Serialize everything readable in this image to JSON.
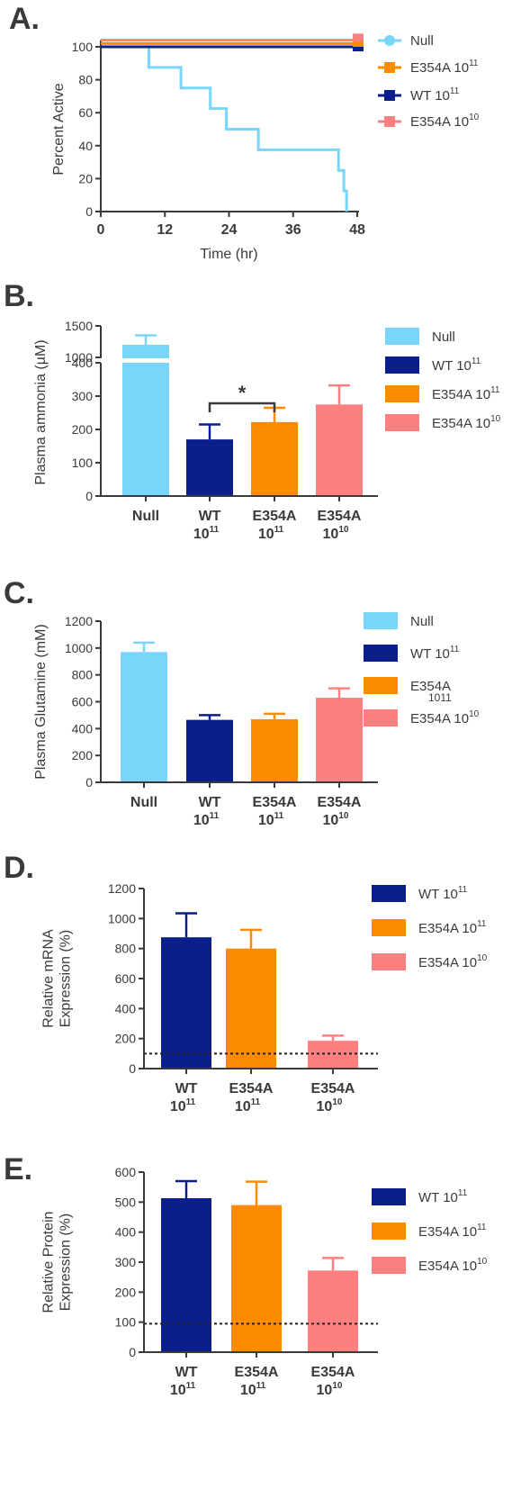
{
  "colors": {
    "null": "#79d5fa",
    "wt": "#0a1e8c",
    "e354a11": "#fb8c00",
    "e354a10": "#fd8080",
    "axis": "#3a3a3a"
  },
  "chart_data": [
    {
      "id": "A",
      "type": "line",
      "panel_label": "A.",
      "xlabel": "Time (hr)",
      "ylabel": "Percent Active",
      "xlim": [
        0,
        48
      ],
      "ylim": [
        0,
        100
      ],
      "xticks": [
        "0",
        "12",
        "24",
        "36",
        "48"
      ],
      "yticks": [
        "0",
        "20",
        "40",
        "60",
        "80",
        "100"
      ],
      "legend_position": "right",
      "series": [
        {
          "name": "Null",
          "key": "null",
          "steps": [
            [
              0,
              100
            ],
            [
              9,
              100
            ],
            [
              9,
              87.5
            ],
            [
              15,
              87.5
            ],
            [
              15,
              75
            ],
            [
              20.5,
              75
            ],
            [
              20.5,
              62.5
            ],
            [
              23.5,
              62.5
            ],
            [
              23.5,
              50
            ],
            [
              29.5,
              50
            ],
            [
              29.5,
              37.5
            ],
            [
              44.5,
              37.5
            ],
            [
              44.5,
              25
            ],
            [
              45.5,
              25
            ],
            [
              45.5,
              12.5
            ],
            [
              46,
              12.5
            ],
            [
              46,
              0
            ]
          ]
        },
        {
          "name": "E354A 10",
          "sup": "11",
          "key": "e354a11",
          "steps": [
            [
              0,
              102
            ],
            [
              48,
              102
            ]
          ]
        },
        {
          "name": "WT 10",
          "sup": "11",
          "key": "wt",
          "steps": [
            [
              0,
              100
            ],
            [
              48,
              100
            ]
          ]
        },
        {
          "name": "E354A 10",
          "sup": "10",
          "key": "e354a10",
          "steps": [
            [
              0,
              104
            ],
            [
              48,
              104
            ]
          ]
        }
      ]
    },
    {
      "id": "B",
      "type": "bar",
      "panel_label": "B.",
      "ylabel": "Plasma ammonia (µM)",
      "broken_axis": true,
      "yticks_lower": [
        "0",
        "100",
        "200",
        "300",
        "400"
      ],
      "yticks_upper": [
        "1000",
        "1500"
      ],
      "categories": [
        {
          "line1": "Null",
          "line2": ""
        },
        {
          "line1": "WT",
          "line2": "10",
          "sup": "11"
        },
        {
          "line1": "E354A",
          "line2": "10",
          "sup": "11"
        },
        {
          "line1": "E354A",
          "line2": "10",
          "sup": "10"
        }
      ],
      "values": [
        1200,
        170,
        222,
        275
      ],
      "errors": [
        150,
        45,
        43,
        57
      ],
      "keys": [
        "null",
        "wt",
        "e354a11",
        "e354a10"
      ],
      "significance": {
        "between": [
          1,
          2
        ],
        "label": "*"
      },
      "legend": [
        {
          "name": "Null",
          "key": "null"
        },
        {
          "name": "WT 10",
          "sup": "11",
          "key": "wt"
        },
        {
          "name": "E354A 10",
          "sup": "11",
          "key": "e354a11"
        },
        {
          "name": "E354A 10",
          "sup": "10",
          "key": "e354a10"
        }
      ]
    },
    {
      "id": "C",
      "type": "bar",
      "panel_label": "C.",
      "ylabel": "Plasma Glutamine (mM)",
      "ylim": [
        0,
        1200
      ],
      "yticks": [
        "0",
        "200",
        "400",
        "600",
        "800",
        "1000",
        "1200"
      ],
      "categories": [
        {
          "line1": "Null",
          "line2": ""
        },
        {
          "line1": "WT",
          "line2": "10",
          "sup": "11"
        },
        {
          "line1": "E354A",
          "line2": "10",
          "sup": "11"
        },
        {
          "line1": "E354A",
          "line2": "10",
          "sup": "10"
        }
      ],
      "values": [
        970,
        465,
        470,
        630
      ],
      "errors": [
        70,
        35,
        40,
        70
      ],
      "keys": [
        "null",
        "wt",
        "e354a11",
        "e354a10"
      ],
      "legend": [
        {
          "name": "Null",
          "key": "null"
        },
        {
          "name": "WT 10",
          "sup": "11",
          "key": "wt"
        },
        {
          "name": "E354A",
          "extra": "1011",
          "key": "e354a11"
        },
        {
          "name": "E354A 10",
          "sup": "10",
          "key": "e354a10"
        }
      ]
    },
    {
      "id": "D",
      "type": "bar",
      "panel_label": "D.",
      "ylabel": [
        "Relative mRNA",
        "Expression (%)"
      ],
      "ylim": [
        0,
        1200
      ],
      "yticks": [
        "0",
        "200",
        "400",
        "600",
        "800",
        "1000",
        "1200"
      ],
      "reference_line": 100,
      "categories": [
        {
          "line1": "WT",
          "line2": "10",
          "sup": "11"
        },
        {
          "line1": "E354A",
          "line2": "10",
          "sup": "11"
        },
        {
          "line1": "E354A",
          "line2": "10",
          "sup": "10"
        }
      ],
      "values": [
        875,
        800,
        185
      ],
      "errors": [
        160,
        125,
        35
      ],
      "keys": [
        "wt",
        "e354a11",
        "e354a10"
      ],
      "legend": [
        {
          "name": "WT 10",
          "sup": "11",
          "key": "wt"
        },
        {
          "name": "E354A 10",
          "sup": "11",
          "key": "e354a11"
        },
        {
          "name": "E354A 10",
          "sup": "10",
          "key": "e354a10"
        }
      ]
    },
    {
      "id": "E",
      "type": "bar",
      "panel_label": "E.",
      "ylabel": [
        "Relative Protein",
        "Expression (%)"
      ],
      "ylim": [
        0,
        600
      ],
      "yticks": [
        "0",
        "100",
        "200",
        "300",
        "400",
        "500",
        "600"
      ],
      "reference_line": 95,
      "categories": [
        {
          "line1": "WT",
          "line2": "10",
          "sup": "11"
        },
        {
          "line1": "E354A",
          "line2": "10",
          "sup": "11"
        },
        {
          "line1": "E354A",
          "line2": "10",
          "sup": "10"
        }
      ],
      "values": [
        513,
        490,
        272
      ],
      "errors": [
        57,
        78,
        42
      ],
      "keys": [
        "wt",
        "e354a11",
        "e354a10"
      ],
      "legend": [
        {
          "name": "WT 10",
          "sup": "11",
          "key": "wt"
        },
        {
          "name": "E354A 10",
          "sup": "11",
          "key": "e354a11"
        },
        {
          "name": "E354A 10",
          "sup": "10",
          "key": "e354a10"
        }
      ]
    }
  ]
}
